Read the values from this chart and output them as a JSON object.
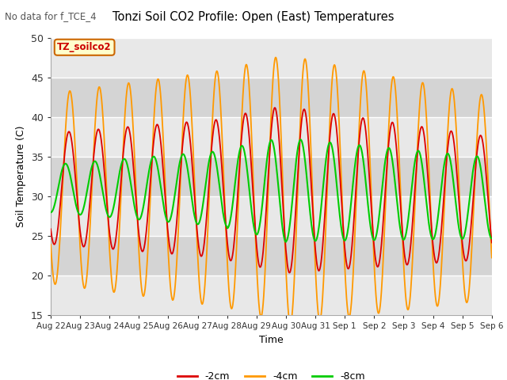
{
  "title": "Tonzi Soil CO2 Profile: Open (East) Temperatures",
  "subtitle": "No data for f_TCE_4",
  "ylabel": "Soil Temperature (C)",
  "xlabel": "Time",
  "ylim": [
    15,
    50
  ],
  "yticks": [
    15,
    20,
    25,
    30,
    35,
    40,
    45,
    50
  ],
  "xtick_labels": [
    "Aug 22",
    "Aug 23",
    "Aug 24",
    "Aug 25",
    "Aug 26",
    "Aug 27",
    "Aug 28",
    "Aug 29",
    "Aug 30",
    "Aug 31",
    "Sep 1",
    "Sep 2",
    "Sep 3",
    "Sep 4",
    "Sep 5",
    "Sep 6"
  ],
  "legend_labels": [
    "-2cm",
    "-4cm",
    "-8cm"
  ],
  "line_colors": [
    "#dd0000",
    "#ff9900",
    "#00cc00"
  ],
  "annotation_box": "TZ_soilco2",
  "fig_bg_color": "#ffffff",
  "plot_bg_color": "#e8e8e8",
  "band_color_light": "#e8e8e8",
  "band_color_dark": "#d4d4d4",
  "grid_color": "#ffffff",
  "n_days": 15,
  "n_points_per_day": 96
}
